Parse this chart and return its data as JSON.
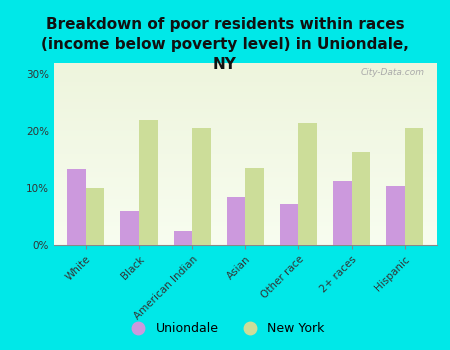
{
  "title": "Breakdown of poor residents within races\n(income below poverty level) in Uniondale,\nNY",
  "categories": [
    "White",
    "Black",
    "American Indian",
    "Asian",
    "Other race",
    "2+ races",
    "Hispanic"
  ],
  "uniondale_values": [
    13.3,
    6.0,
    2.5,
    8.5,
    7.2,
    11.2,
    10.3
  ],
  "newyork_values": [
    10.0,
    22.0,
    20.5,
    13.5,
    21.5,
    16.3,
    20.5
  ],
  "uniondale_color": "#cc99dd",
  "newyork_color": "#ccdd99",
  "background_color": "#00e8e8",
  "plot_bg_color1": "#eef5dd",
  "plot_bg_color2": "#f8fdf0",
  "ylim": [
    0,
    32
  ],
  "yticks": [
    0,
    10,
    20,
    30
  ],
  "ytick_labels": [
    "0%",
    "10%",
    "20%",
    "30%"
  ],
  "watermark": "City-Data.com",
  "bar_width": 0.35,
  "title_fontsize": 11,
  "tick_fontsize": 7.5,
  "legend_fontsize": 9
}
